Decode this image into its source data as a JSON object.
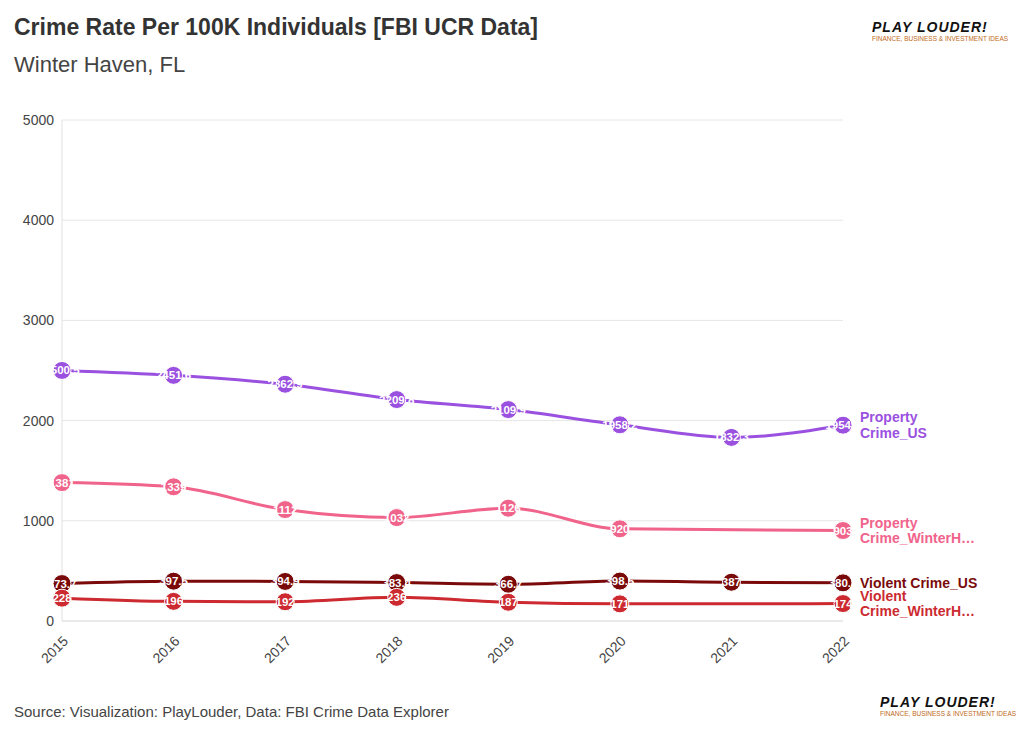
{
  "chart_data": {
    "type": "line",
    "title": "Crime Rate Per 100K Individuals [FBI UCR Data]",
    "subtitle": "Winter Haven, FL",
    "source": "Source: Visualization: PlayLouder, Data: FBI Crime Data Explorer",
    "logo": {
      "name": "PLAY LOUDER!",
      "tagline": "FINANCE, BUSINESS & INVESTMENT IDEAS"
    },
    "categories": [
      "2015",
      "2016",
      "2017",
      "2018",
      "2019",
      "2020",
      "2021",
      "2022"
    ],
    "series": [
      {
        "name": "Property Crime_US",
        "color": "#9b51e0",
        "values": [
          2500.5,
          2451.6,
          2362.9,
          2209.8,
          2109.9,
          1958.2,
          1832.3,
          1954.4
        ]
      },
      {
        "name": "Property Crime_WinterH…",
        "color": "#f0638b",
        "values": [
          1381,
          1339,
          1112,
          1032,
          1126,
          920,
          null,
          903
        ]
      },
      {
        "name": "Violent Crime_US",
        "color": "#7a0a0a",
        "values": [
          373.7,
          397.5,
          394.9,
          383.4,
          366.7,
          398.5,
          387,
          380.7
        ]
      },
      {
        "name": "Violent Crime_WinterH…",
        "color": "#cc2a30",
        "values": [
          228,
          196,
          192,
          236,
          187,
          171,
          null,
          174
        ]
      }
    ],
    "ylim": [
      0,
      5000
    ],
    "yticks": [
      0,
      1000,
      2000,
      3000,
      4000,
      5000
    ],
    "grid": true,
    "data_labels": true,
    "marker": "circle"
  }
}
